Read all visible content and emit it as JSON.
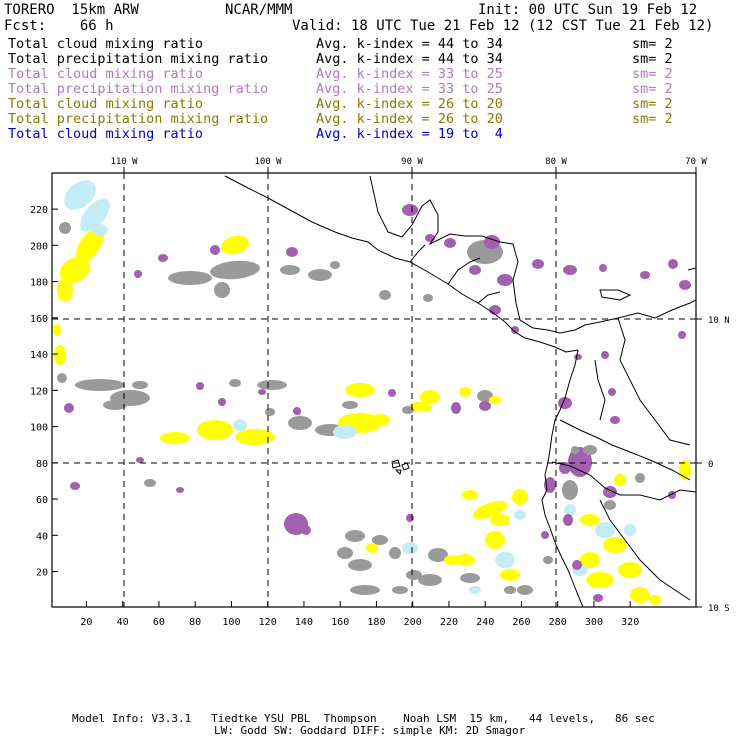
{
  "header": {
    "model": "TORERO  15km ARW",
    "org": "NCAR/MMM",
    "init": "Init: 00 UTC Sun 19 Feb 12",
    "fcst": "Fcst:    66 h",
    "valid": "Valid: 18 UTC Tue 21 Feb 12 (12 CST Tue 21 Feb 12)"
  },
  "legend": [
    {
      "field": "Total cloud mixing ratio",
      "kidx": "Avg. k-index = 44 to 34",
      "sm": "sm= 2",
      "color": "#000000"
    },
    {
      "field": "Total precipitation mixing ratio",
      "kidx": "Avg. k-index = 44 to 34",
      "sm": "sm= 2",
      "color": "#000000"
    },
    {
      "field": "Total cloud mixing ratio",
      "kidx": "Avg. k-index = 33 to 25",
      "sm": "sm= 2",
      "color": "#b07ac0"
    },
    {
      "field": "Total precipitation mixing ratio",
      "kidx": "Avg. k-index = 33 to 25",
      "sm": "sm= 2",
      "color": "#b07ac0"
    },
    {
      "field": "Total cloud mixing ratio",
      "kidx": "Avg. k-index = 26 to 20",
      "sm": "sm= 2",
      "color": "#8a7a00"
    },
    {
      "field": "Total precipitation mixing ratio",
      "kidx": "Avg. k-index = 26 to 20",
      "sm": "sm= 2",
      "color": "#8a7a00"
    },
    {
      "field": "Total cloud mixing ratio",
      "kidx": "Avg. k-index = 19 to  4",
      "sm": "",
      "color": "#0000c8"
    }
  ],
  "map": {
    "lon_labels": [
      "110 W",
      "100 W",
      "90 W",
      "80 W",
      "70 W"
    ],
    "lat_labels": [
      "10 N",
      "0",
      "10 S"
    ],
    "y_ticks": [
      "20",
      "40",
      "60",
      "80",
      "100",
      "120",
      "140",
      "160",
      "180",
      "200",
      "220"
    ],
    "x_ticks": [
      "20",
      "40",
      "60",
      "80",
      "100",
      "120",
      "140",
      "160",
      "180",
      "200",
      "220",
      "240",
      "260",
      "280",
      "300",
      "320"
    ],
    "colors": {
      "gray": "#9a9a9a",
      "purple": "#a35fb0",
      "yellow": "#ffff00",
      "cyan": "#c4ecf6"
    }
  },
  "footer": {
    "line1": "Model Info: V3.3.1   Tiedtke YSU PBL  Thompson    Noah LSM  15 km,   44 levels,   86 sec",
    "line2": "LW: Godd SW: Goddard DIFF: simple KM: 2D Smagor"
  }
}
